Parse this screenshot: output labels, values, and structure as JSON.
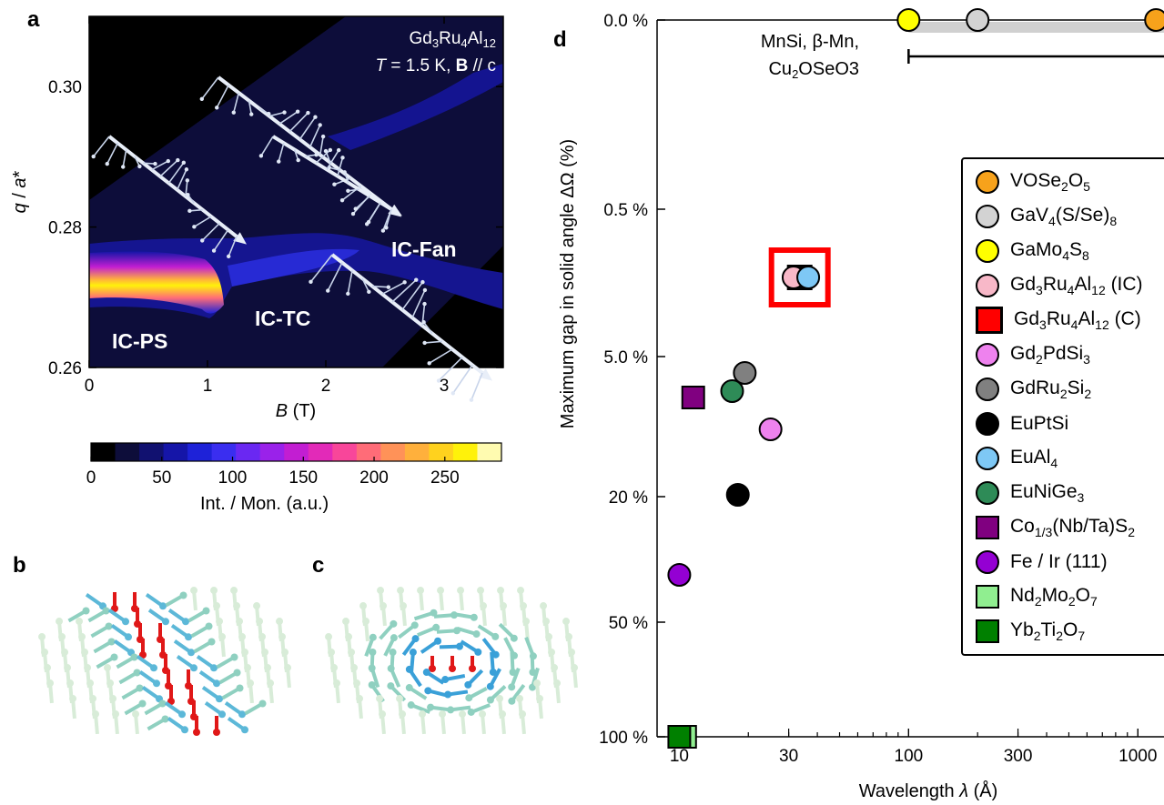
{
  "panel_labels": {
    "a": "a",
    "b": "b",
    "c": "c",
    "d": "d"
  },
  "panel_a": {
    "compound_parts": [
      "Gd",
      "3",
      "Ru",
      "4",
      "Al",
      "12"
    ],
    "condition_parts": [
      "T",
      " = 1.5 K, ",
      "B",
      " // c"
    ],
    "phase_labels": {
      "ic_ps": "IC-PS",
      "ic_tc": "IC-TC",
      "ic_fan": "IC-Fan"
    },
    "colorbar_title": "Int. / Mon. (a.u.)",
    "colorbar_colors": [
      "#000000",
      "#0d0d3a",
      "#111170",
      "#1515a8",
      "#1e22d8",
      "#3a2ef0",
      "#6a28f2",
      "#9a22ea",
      "#c21ed2",
      "#e22ab8",
      "#f8469a",
      "#ff6c78",
      "#ff9258",
      "#ffb03c",
      "#ffd21e",
      "#fff20a",
      "#fffbb0"
    ]
  },
  "chart_data": [
    {
      "type": "heatmap",
      "panel": "a",
      "xlabel_parts": [
        "B",
        " (T)"
      ],
      "ylabel_parts": [
        "q",
        " / ",
        "a",
        "*"
      ],
      "xlim": [
        0,
        3.5
      ],
      "ylim": [
        0.26,
        0.31
      ],
      "x_ticks": [
        0,
        1,
        2,
        3
      ],
      "y_ticks": [
        0.26,
        0.28,
        0.3
      ],
      "y_tick_labels": [
        "0.26",
        "0.28",
        "0.30"
      ],
      "colorbar": {
        "range": [
          0,
          290
        ],
        "ticks": [
          0,
          50,
          100,
          150,
          200,
          250
        ]
      }
    },
    {
      "type": "scatter",
      "panel": "d",
      "xlabel_parts": [
        "Wavelength ",
        "λ",
        " (Å)"
      ],
      "ylabel_parts": [
        "Maximum gap in solid angle ",
        "ΔΩ",
        " (%)"
      ],
      "x_scale": "log",
      "xlim": [
        8,
        1300
      ],
      "x_ticks": [
        10,
        30,
        100,
        300,
        1000
      ],
      "y_ticks": [
        "0.0 %",
        "0.5 %",
        "5.0 %",
        "20 %",
        "50 %",
        "100 %"
      ],
      "y_tick_values": [
        0,
        0.5,
        5,
        20,
        50,
        100
      ],
      "reference_annotation_lines": [
        "MnSi, β-Mn,",
        "Cu2OSeO3"
      ],
      "reference_range_x": [
        100,
        1300
      ],
      "points": [
        {
          "name": "VOSe2O5",
          "x": 1200,
          "y": 0,
          "marker": "circle",
          "color": "#f7a21b"
        },
        {
          "name": "GaV4(S/Se)8",
          "x": 200,
          "y": 0,
          "marker": "circle",
          "color": "#d3d3d3"
        },
        {
          "name": "GaMo4S8",
          "x": 100,
          "y": 0,
          "marker": "circle",
          "color": "#ffff00"
        },
        {
          "name": "Gd3Ru4Al12 (IC)",
          "x": 34,
          "y": 1.5,
          "marker": "circle",
          "color": "#f8b8c8"
        },
        {
          "name": "Gd3Ru4Al12 (C)",
          "x": 35,
          "y": 1.5,
          "marker": "square",
          "color": "#ff0000"
        },
        {
          "name": "Gd2PdSi3",
          "x": 25,
          "y": 10,
          "marker": "circle",
          "color": "#ee82ee"
        },
        {
          "name": "GdRu2Si2",
          "x": 19,
          "y": 5.5,
          "marker": "circle",
          "color": "#808080"
        },
        {
          "name": "EuPtSi",
          "x": 18,
          "y": 19,
          "marker": "circle",
          "color": "#000000"
        },
        {
          "name": "EuAl4",
          "x": 38,
          "y": 1.5,
          "marker": "circle",
          "color": "#7ec8f5"
        },
        {
          "name": "EuNiGe3",
          "x": 17,
          "y": 6.5,
          "marker": "circle",
          "color": "#2e8b57"
        },
        {
          "name": "Co1/3(Nb/Ta)S2",
          "x": 11.5,
          "y": 7,
          "marker": "square",
          "color": "#800080"
        },
        {
          "name": "Fe/Ir(111)",
          "x": 10,
          "y": 37,
          "marker": "circle",
          "color": "#9400d3"
        },
        {
          "name": "Nd2Mo2O7",
          "x": 10.5,
          "y": 100,
          "marker": "square",
          "color": "#90ee90"
        },
        {
          "name": "Yb2Ti2O7",
          "x": 10,
          "y": 100,
          "marker": "square",
          "color": "#008000"
        }
      ]
    }
  ],
  "legend": [
    {
      "shape": "circle",
      "color": "#f7a21b",
      "parts": [
        [
          "VOSe",
          ""
        ],
        [
          "2",
          "sub"
        ],
        [
          "O",
          ""
        ],
        [
          "5",
          "sub"
        ]
      ]
    },
    {
      "shape": "circle",
      "color": "#d3d3d3",
      "parts": [
        [
          "GaV",
          ""
        ],
        [
          "4",
          "sub"
        ],
        [
          "(S/Se)",
          ""
        ],
        [
          "8",
          "sub"
        ]
      ]
    },
    {
      "shape": "circle",
      "color": "#ffff00",
      "parts": [
        [
          "GaMo",
          ""
        ],
        [
          "4",
          "sub"
        ],
        [
          "S",
          ""
        ],
        [
          "8",
          "sub"
        ]
      ]
    },
    {
      "shape": "circle",
      "color": "#f8b8c8",
      "parts": [
        [
          "Gd",
          ""
        ],
        [
          "3",
          "sub"
        ],
        [
          "Ru",
          ""
        ],
        [
          "4",
          "sub"
        ],
        [
          "Al",
          ""
        ],
        [
          "12",
          "sub"
        ],
        [
          " (IC)",
          ""
        ]
      ]
    },
    {
      "shape": "squareC",
      "color": "#ff0000",
      "parts": [
        [
          "Gd",
          ""
        ],
        [
          "3",
          "sub"
        ],
        [
          "Ru",
          ""
        ],
        [
          "4",
          "sub"
        ],
        [
          "Al",
          ""
        ],
        [
          "12",
          "sub"
        ],
        [
          " (C)",
          ""
        ]
      ]
    },
    {
      "shape": "circle",
      "color": "#ee82ee",
      "parts": [
        [
          "Gd",
          ""
        ],
        [
          "2",
          "sub"
        ],
        [
          "PdSi",
          ""
        ],
        [
          "3",
          "sub"
        ]
      ]
    },
    {
      "shape": "circle",
      "color": "#808080",
      "parts": [
        [
          "GdRu",
          ""
        ],
        [
          "2",
          "sub"
        ],
        [
          "Si",
          ""
        ],
        [
          "2",
          "sub"
        ]
      ]
    },
    {
      "shape": "circle",
      "color": "#000000",
      "parts": [
        [
          "EuPtSi",
          ""
        ]
      ]
    },
    {
      "shape": "circle",
      "color": "#7ec8f5",
      "parts": [
        [
          "EuAl",
          ""
        ],
        [
          "4",
          "sub"
        ]
      ]
    },
    {
      "shape": "circle",
      "color": "#2e8b57",
      "parts": [
        [
          "EuNiGe",
          ""
        ],
        [
          "3",
          "sub"
        ]
      ]
    },
    {
      "shape": "square",
      "color": "#800080",
      "parts": [
        [
          "Co",
          ""
        ],
        [
          "1/3",
          "sub"
        ],
        [
          "(Nb/Ta)S",
          ""
        ],
        [
          "2",
          "sub"
        ]
      ]
    },
    {
      "shape": "circle",
      "color": "#9400d3",
      "parts": [
        [
          "Fe / Ir (111)",
          ""
        ]
      ]
    },
    {
      "shape": "square",
      "color": "#90ee90",
      "parts": [
        [
          "Nd",
          ""
        ],
        [
          "2",
          "sub"
        ],
        [
          "Mo",
          ""
        ],
        [
          "2",
          "sub"
        ],
        [
          "O",
          ""
        ],
        [
          "7",
          "sub"
        ]
      ]
    },
    {
      "shape": "square",
      "color": "#008000",
      "parts": [
        [
          "Yb",
          ""
        ],
        [
          "2",
          "sub"
        ],
        [
          "Ti",
          ""
        ],
        [
          "2",
          "sub"
        ],
        [
          "O",
          ""
        ],
        [
          "7",
          "sub"
        ]
      ]
    }
  ]
}
